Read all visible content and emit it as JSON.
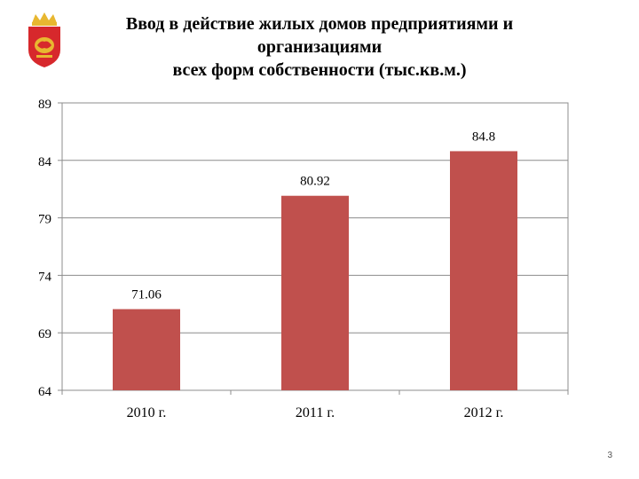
{
  "slide": {
    "title_lines": [
      "Ввод в действие жилых домов предприятиями и",
      "организациями",
      "всех форм собственности (тыс.кв.м.)"
    ],
    "page_number": "3",
    "emblem_icon": "coat-of-arms-icon",
    "colors": {
      "bar": "#C0504D",
      "emblem_red": "#D7282C",
      "emblem_gold": "#E8B730"
    }
  },
  "chart_data": {
    "type": "bar",
    "categories": [
      "2010 г.",
      "2011 г.",
      "2012 г."
    ],
    "values": [
      71.06,
      80.92,
      84.8
    ],
    "data_labels": [
      "71.06",
      "80.92",
      "84.8"
    ],
    "title": "Ввод в действие жилых домов предприятиями и организациями всех форм собственности (тыс.кв.м.)",
    "xlabel": "",
    "ylabel": "",
    "ylim": [
      64,
      89
    ],
    "yticks": [
      64,
      69,
      74,
      79,
      84,
      89
    ],
    "grid": true,
    "legend": "none"
  }
}
